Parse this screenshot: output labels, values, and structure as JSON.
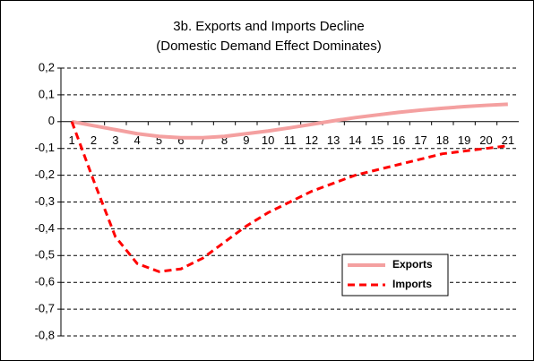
{
  "chart_data": {
    "type": "line",
    "title": "3b. Exports and Imports Decline",
    "subtitle": "(Domestic Demand Effect Dominates)",
    "categories": [
      "1",
      "2",
      "3",
      "4",
      "5",
      "6",
      "7",
      "8",
      "9",
      "10",
      "11",
      "12",
      "13",
      "14",
      "15",
      "16",
      "17",
      "18",
      "19",
      "20",
      "21"
    ],
    "series": [
      {
        "name": "Exports",
        "color": "#f4a0a0",
        "dash": false,
        "values": [
          0,
          -0.015,
          -0.03,
          -0.045,
          -0.055,
          -0.06,
          -0.06,
          -0.055,
          -0.045,
          -0.035,
          -0.023,
          -0.01,
          0.003,
          0.015,
          0.025,
          0.035,
          0.043,
          0.05,
          0.056,
          0.061,
          0.065
        ]
      },
      {
        "name": "Imports",
        "color": "#ff0000",
        "dash": true,
        "values": [
          0,
          -0.22,
          -0.43,
          -0.53,
          -0.56,
          -0.55,
          -0.51,
          -0.45,
          -0.39,
          -0.34,
          -0.3,
          -0.26,
          -0.23,
          -0.2,
          -0.18,
          -0.16,
          -0.14,
          -0.12,
          -0.11,
          -0.1,
          -0.09
        ]
      }
    ],
    "ylim": [
      -0.8,
      0.2
    ],
    "yticks": [
      {
        "value": 0.2,
        "label": "0,2"
      },
      {
        "value": 0.1,
        "label": "0,1"
      },
      0,
      {
        "value": -0.1,
        "label": "-0,1"
      },
      {
        "value": -0.2,
        "label": "-0,2"
      },
      {
        "value": -0.3,
        "label": "-0,3"
      },
      {
        "value": -0.4,
        "label": "-0,4"
      },
      {
        "value": -0.5,
        "label": "-0,5"
      },
      {
        "value": -0.6,
        "label": "-0,6"
      },
      {
        "value": -0.7,
        "label": "-0,7"
      },
      {
        "value": -0.8,
        "label": "-0,8"
      }
    ],
    "grid": true,
    "legend": "lower right"
  }
}
